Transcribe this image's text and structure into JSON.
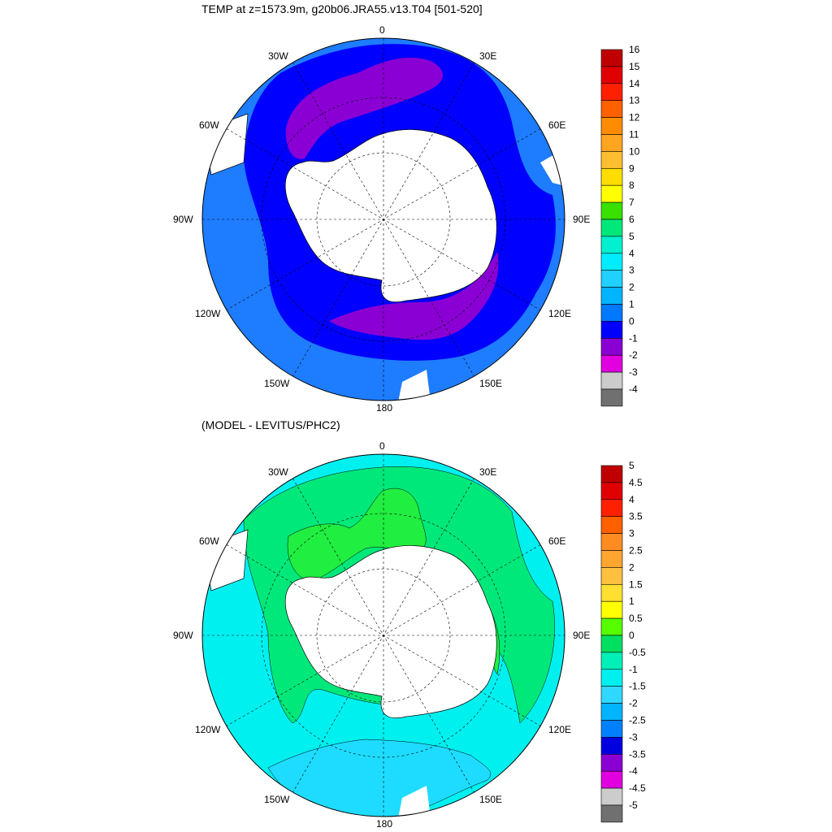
{
  "panel_top": {
    "title": "TEMP at z=1573.9m, g20b06.JRA55.v13.T04 [501-520]",
    "lon_labels": {
      "n": "0",
      "ne30": "30E",
      "ne60": "60E",
      "e": "90E",
      "se120": "120E",
      "se150": "150E",
      "s": "180",
      "sw150": "150W",
      "sw120": "120W",
      "w": "90W",
      "nw60": "60W",
      "nw30": "30W"
    },
    "colorbar": {
      "labels": [
        "16",
        "15",
        "14",
        "13",
        "12",
        "11",
        "10",
        "9",
        "8",
        "7",
        "6",
        "5",
        "4",
        "3",
        "2",
        "1",
        "0",
        "-1",
        "-2",
        "-3",
        "-4"
      ],
      "colors": [
        "#c00000",
        "#e00000",
        "#ff2000",
        "#ff6000",
        "#ff8c00",
        "#ffa520",
        "#ffbe30",
        "#ffdd00",
        "#ffff00",
        "#39e000",
        "#00e87a",
        "#00f0d0",
        "#00ecff",
        "#20d0ff",
        "#00b4ff",
        "#0078ff",
        "#0000ff",
        "#8a00d4",
        "#e000e0",
        "#cccccc",
        "#707070"
      ]
    },
    "fill_colors": {
      "outer": "#1e7cff",
      "middle": "#0000ff",
      "inner": "#8a00d4",
      "land": "#ffffff"
    }
  },
  "panel_bottom": {
    "title": "(MODEL - LEVITUS/PHC2)",
    "lon_labels": {
      "n": "0",
      "ne30": "30E",
      "ne60": "60E",
      "e": "90E",
      "se120": "120E",
      "se150": "150E",
      "s": "180",
      "sw150": "150W",
      "sw120": "120W",
      "w": "90W",
      "nw60": "60W",
      "nw30": "30W"
    },
    "colorbar": {
      "labels": [
        "5",
        "4.5",
        "4",
        "3.5",
        "3",
        "2.5",
        "2",
        "1.5",
        "1",
        "0.5",
        "0",
        "-0.5",
        "-1",
        "-1.5",
        "-2",
        "-2.5",
        "-3",
        "-3.5",
        "-4",
        "-4.5",
        "-5"
      ],
      "colors": [
        "#c00000",
        "#e00000",
        "#ff2000",
        "#ff6000",
        "#ff8c20",
        "#ffa530",
        "#ffc040",
        "#ffe030",
        "#ffff00",
        "#55ff00",
        "#00e060",
        "#00f0b8",
        "#00f0f0",
        "#30d8ff",
        "#00b4ff",
        "#0080ff",
        "#0000e0",
        "#8a00d4",
        "#e000e0",
        "#cccccc",
        "#707070"
      ]
    },
    "fill_colors": {
      "outer": "#00f0f0",
      "band": "#1edcff",
      "warm": "#00e87a",
      "green": "#20ee40",
      "land": "#ffffff"
    }
  }
}
